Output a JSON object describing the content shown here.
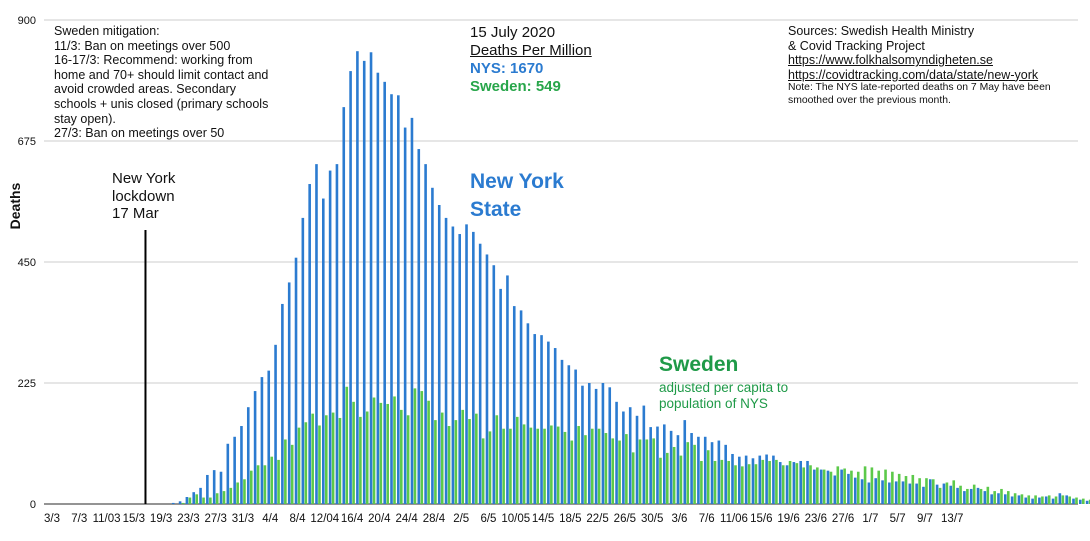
{
  "notes": {
    "mitigation": [
      "Sweden mitigation:",
      "11/3: Ban on meetings over 500",
      "16-17/3: Recommend: working from",
      "home and 70+ should limit contact and",
      "avoid crowded areas. Secondary",
      "schools + unis closed (primary schools",
      "stay open).",
      "27/3: Ban on meetings over 50"
    ],
    "date": "15 July 2020",
    "dpm_heading": "Deaths Per Million",
    "nys_dpm": "NYS: 1670",
    "sweden_dpm": "Sweden: 549",
    "sources": [
      "Sources: Swedish Health Ministry",
      "& Covid Tracking Project",
      "https://www.folkhalsomyndigheten.se",
      "https://covidtracking.com/data/state/new-york"
    ],
    "sources_note": [
      "Note: The NYS late-reported deaths on 7 May have been",
      "smoothed over the previous month."
    ],
    "ny_label": [
      "New York",
      "State"
    ],
    "sweden_label": "Sweden",
    "sweden_sub": [
      "adjusted per capita to",
      "population of NYS"
    ],
    "lockdown": [
      "New York",
      "lockdown",
      "17 Mar"
    ]
  },
  "colors": {
    "nys": "#2b7bd0",
    "sweden": "#5cc94a",
    "grid": "#bbbbbb",
    "axis": "#555555"
  },
  "chart_data": {
    "type": "bar",
    "title": "",
    "xlabel": "",
    "ylabel": "Deaths",
    "ylim": [
      0,
      900
    ],
    "yticks": [
      0,
      225,
      450,
      675,
      900
    ],
    "grid": true,
    "start_date": "3/3",
    "x_tick_labels": [
      "3/3",
      "7/3",
      "11/03",
      "15/3",
      "19/3",
      "23/3",
      "27/3",
      "31/3",
      "4/4",
      "8/4",
      "12/04",
      "16/4",
      "20/4",
      "24/4",
      "28/4",
      "2/5",
      "6/5",
      "10/05",
      "14/5",
      "18/5",
      "22/5",
      "26/5",
      "30/5",
      "3/6",
      "7/6",
      "11/06",
      "15/6",
      "19/6",
      "23/6",
      "27/6",
      "1/7",
      "5/7",
      "9/7",
      "13/7"
    ],
    "annotation": {
      "label": "New York lockdown 17 Mar",
      "date": "17/3"
    },
    "series": [
      {
        "name": "New York State",
        "values": [
          0,
          0,
          0,
          0,
          0,
          0,
          0,
          0,
          0,
          0,
          0,
          0,
          0,
          0,
          0,
          0,
          0,
          0,
          2,
          5,
          13,
          22,
          30,
          54,
          63,
          60,
          112,
          125,
          145,
          180,
          210,
          236,
          248,
          296,
          372,
          412,
          458,
          532,
          595,
          632,
          568,
          620,
          632,
          738,
          805,
          842,
          824,
          840,
          802,
          785,
          762,
          760,
          700,
          718,
          660,
          632,
          588,
          556,
          532,
          516,
          502,
          520,
          506,
          484,
          464,
          444,
          400,
          425,
          368,
          360,
          336,
          316,
          314,
          302,
          290,
          268,
          258,
          250,
          220,
          225,
          214,
          225,
          217,
          190,
          172,
          180,
          164,
          183,
          143,
          144,
          148,
          136,
          128,
          156,
          132,
          125,
          125,
          115,
          118,
          110,
          93,
          88,
          90,
          85,
          90,
          92,
          90,
          78,
          72,
          78,
          80,
          80,
          64,
          64,
          62,
          53,
          64,
          56,
          49,
          46,
          40,
          48,
          44,
          40,
          42,
          42,
          38,
          38,
          32,
          46,
          36,
          38,
          34,
          30,
          24,
          28,
          30,
          24,
          18,
          20,
          18,
          14,
          16,
          12,
          10,
          12,
          14,
          10,
          20,
          16,
          10,
          8,
          6,
          7,
          9
        ],
        "color": "#2b7bd0"
      },
      {
        "name": "Sweden",
        "values": [
          0,
          0,
          0,
          0,
          0,
          0,
          0,
          0,
          0,
          0,
          0,
          0,
          0,
          0,
          0,
          0,
          0,
          0,
          0,
          2,
          12,
          18,
          12,
          12,
          20,
          24,
          30,
          40,
          46,
          62,
          72,
          72,
          88,
          82,
          120,
          110,
          142,
          152,
          168,
          146,
          165,
          170,
          160,
          218,
          190,
          162,
          172,
          198,
          188,
          186,
          200,
          175,
          165,
          215,
          210,
          192,
          156,
          170,
          145,
          156,
          175,
          158,
          168,
          122,
          135,
          165,
          140,
          140,
          162,
          148,
          142,
          140,
          140,
          146,
          144,
          134,
          118,
          145,
          128,
          140,
          140,
          132,
          122,
          118,
          130,
          96,
          120,
          120,
          122,
          86,
          95,
          106,
          90,
          115,
          110,
          80,
          100,
          80,
          82,
          80,
          72,
          70,
          74,
          74,
          82,
          80,
          82,
          72,
          80,
          76,
          68,
          72,
          68,
          64,
          60,
          70,
          66,
          62,
          60,
          70,
          68,
          62,
          64,
          60,
          56,
          52,
          54,
          48,
          48,
          46,
          30,
          40,
          44,
          34,
          28,
          36,
          28,
          32,
          24,
          28,
          24,
          20,
          18,
          16,
          16,
          14,
          16,
          14,
          16,
          14,
          12,
          10,
          8,
          8,
          6
        ]
      }
    ]
  }
}
